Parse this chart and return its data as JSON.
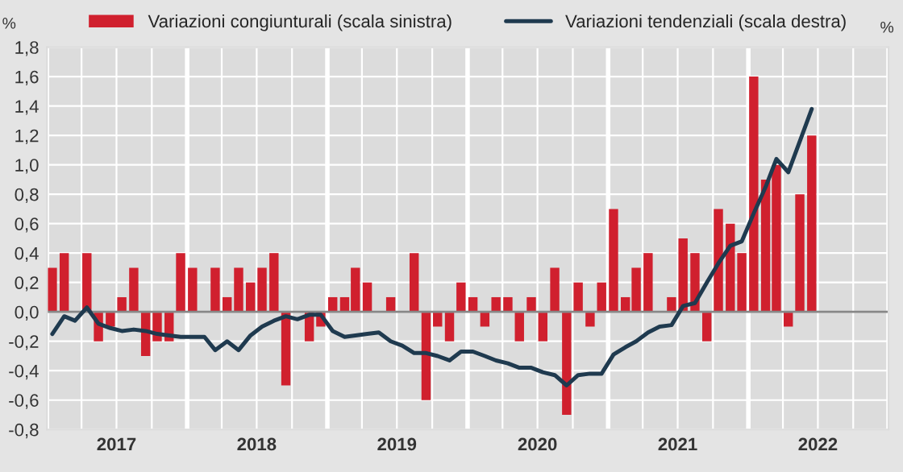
{
  "chart_data": {
    "type": "bar",
    "x": [
      "2017-01-15",
      "2017-02-15",
      "2017-03-15",
      "2017-04-15",
      "2017-05-15",
      "2017-06-15",
      "2017-07-15",
      "2017-08-15",
      "2017-09-15",
      "2017-10-15",
      "2017-11-15",
      "2017-12-15",
      "2018-01-15",
      "2018-02-15",
      "2018-03-15",
      "2018-04-15",
      "2018-05-15",
      "2018-06-15",
      "2018-07-15",
      "2018-08-15",
      "2018-09-15",
      "2018-10-15",
      "2018-11-15",
      "2018-12-15",
      "2019-01-15",
      "2019-02-15",
      "2019-03-15",
      "2019-04-15",
      "2019-05-15",
      "2019-06-15",
      "2019-07-15",
      "2019-08-15",
      "2019-09-15",
      "2019-10-15",
      "2019-11-15",
      "2019-12-15",
      "2020-01-15",
      "2020-02-15",
      "2020-03-15",
      "2020-04-15",
      "2020-05-15",
      "2020-06-15",
      "2020-07-15",
      "2020-08-15",
      "2020-09-15",
      "2020-10-15",
      "2020-11-15",
      "2020-12-15",
      "2021-01-15",
      "2021-02-15",
      "2021-03-15",
      "2021-04-15",
      "2021-05-15",
      "2021-06-15",
      "2021-07-15",
      "2021-08-15",
      "2021-09-15",
      "2021-10-15",
      "2021-11-15",
      "2021-12-15",
      "2022-01-15",
      "2022-02-15",
      "2022-03-15",
      "2022-04-15",
      "2022-05-15",
      "2022-06-15"
    ],
    "series": [
      {
        "name": "Variazioni congiunturali (scala sinistra)",
        "color": "#d0202e",
        "values": [
          0.3,
          0.4,
          0.0,
          0.4,
          -0.2,
          -0.1,
          0.1,
          0.3,
          -0.3,
          -0.2,
          -0.2,
          0.4,
          0.3,
          0.0,
          0.3,
          0.1,
          0.3,
          0.2,
          0.3,
          0.4,
          -0.5,
          0.0,
          -0.2,
          -0.1,
          0.1,
          0.1,
          0.3,
          0.2,
          0.0,
          0.1,
          0.0,
          0.4,
          -0.6,
          -0.1,
          -0.2,
          0.2,
          0.1,
          -0.1,
          0.1,
          0.1,
          -0.2,
          0.1,
          -0.2,
          0.3,
          -0.7,
          0.2,
          -0.1,
          0.2,
          0.7,
          0.1,
          0.3,
          0.4,
          0.0,
          0.1,
          0.5,
          0.4,
          -0.2,
          0.7,
          0.6,
          0.4,
          1.6,
          0.9,
          1.0,
          -0.1,
          0.8,
          1.2
        ]
      },
      {
        "name": "Variazioni tendenziali (scala destra)",
        "type": "line",
        "color": "#1f3a4f",
        "values": [
          -0.15,
          -0.03,
          -0.06,
          0.03,
          -0.08,
          -0.11,
          -0.13,
          -0.12,
          -0.13,
          -0.15,
          -0.16,
          -0.17,
          -0.17,
          -0.17,
          -0.26,
          -0.2,
          -0.26,
          -0.16,
          -0.1,
          -0.06,
          -0.03,
          -0.05,
          -0.02,
          -0.02,
          -0.13,
          -0.17,
          -0.16,
          -0.15,
          -0.14,
          -0.2,
          -0.23,
          -0.28,
          -0.28,
          -0.3,
          -0.33,
          -0.27,
          -0.27,
          -0.3,
          -0.33,
          -0.35,
          -0.38,
          -0.38,
          -0.41,
          -0.43,
          -0.5,
          -0.43,
          -0.42,
          -0.42,
          -0.29,
          -0.24,
          -0.2,
          -0.14,
          -0.1,
          -0.09,
          0.04,
          0.06,
          0.2,
          0.33,
          0.45,
          0.48,
          0.67,
          0.85,
          1.04,
          0.95,
          1.16,
          1.38
        ]
      }
    ],
    "ylabel": "%",
    "annotations": [
      "%"
    ],
    "xlim": [
      "2017-01-01",
      "2023-01-01"
    ],
    "xticks": [
      {
        "value": "2017-01-01",
        "label": null
      },
      {
        "value": "2017-04-01",
        "label": null
      },
      {
        "value": "2017-07-01",
        "label": "2017"
      },
      {
        "value": "2017-10-01",
        "label": null
      },
      {
        "value": "2018-01-01",
        "label": null
      },
      {
        "value": "2018-04-01",
        "label": null
      },
      {
        "value": "2018-07-01",
        "label": "2018"
      },
      {
        "value": "2018-10-01",
        "label": null
      },
      {
        "value": "2019-01-01",
        "label": null
      },
      {
        "value": "2019-04-01",
        "label": null
      },
      {
        "value": "2019-07-01",
        "label": "2019"
      },
      {
        "value": "2019-10-01",
        "label": null
      },
      {
        "value": "2020-01-01",
        "label": null
      },
      {
        "value": "2020-04-01",
        "label": null
      },
      {
        "value": "2020-07-01",
        "label": "2020"
      },
      {
        "value": "2020-10-01",
        "label": null
      },
      {
        "value": "2021-01-01",
        "label": null
      },
      {
        "value": "2021-04-01",
        "label": null
      },
      {
        "value": "2021-07-01",
        "label": "2021"
      },
      {
        "value": "2021-10-01",
        "label": null
      },
      {
        "value": "2022-01-01",
        "label": null
      },
      {
        "value": "2022-04-01",
        "label": null
      },
      {
        "value": "2022-07-01",
        "label": "2022"
      },
      {
        "value": "2022-10-01",
        "label": null
      },
      {
        "value": "2023-01-01",
        "label": null
      }
    ],
    "ylim": [
      -0.8,
      1.8
    ],
    "yticks": [
      {
        "value": -0.8,
        "label": "-0,8"
      },
      {
        "value": -0.6,
        "label": "-0,6"
      },
      {
        "value": -0.4,
        "label": "-0,4"
      },
      {
        "value": -0.2,
        "label": "-0,2"
      },
      {
        "value": 0.0,
        "label": "0,0"
      },
      {
        "value": 0.2,
        "label": "0,2"
      },
      {
        "value": 0.4,
        "label": "0,4"
      },
      {
        "value": 0.6,
        "label": "0,6"
      },
      {
        "value": 0.8,
        "label": "0,8"
      },
      {
        "value": 1.0,
        "label": "1,0"
      },
      {
        "value": 1.2,
        "label": "1,2"
      },
      {
        "value": 1.4,
        "label": "1,4"
      },
      {
        "value": 1.6,
        "label": "1,6"
      },
      {
        "value": 1.8,
        "label": "1,8"
      }
    ],
    "grid": true,
    "legend": "top"
  }
}
